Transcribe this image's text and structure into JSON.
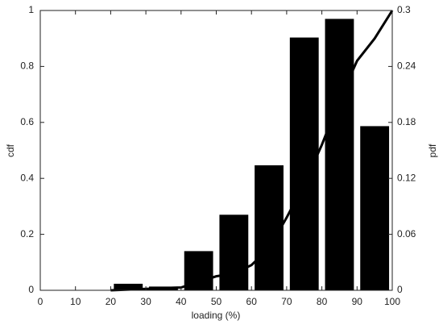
{
  "chart_data": {
    "type": "combo",
    "xlabel": "loading (%)",
    "ylabel": "cdf",
    "y2label": "pdf",
    "xlim": [
      0,
      100
    ],
    "xticks": [
      0,
      10,
      20,
      30,
      40,
      50,
      60,
      70,
      80,
      90,
      100
    ],
    "ylim": [
      0,
      1
    ],
    "yticks": [
      0,
      0.2,
      0.4,
      0.6,
      0.8,
      1
    ],
    "y2lim": [
      0,
      0.3
    ],
    "y2ticks": [
      0,
      0.06,
      0.12,
      0.18,
      0.24,
      0.3
    ],
    "grid": false,
    "series": [
      {
        "type": "bar",
        "axis": "y2",
        "color": "#000000",
        "x": [
          25,
          35,
          45,
          55,
          65,
          75,
          85,
          95
        ],
        "values": [
          0.007,
          0.004,
          0.042,
          0.081,
          0.134,
          0.271,
          0.291,
          0.176
        ]
      },
      {
        "type": "line",
        "axis": "y",
        "color": "#000000",
        "x": [
          20,
          30,
          40,
          45,
          50,
          55,
          60,
          65,
          70,
          75,
          80,
          85,
          90,
          95,
          100
        ],
        "values": [
          0,
          0.005,
          0.01,
          0.03,
          0.05,
          0.06,
          0.09,
          0.15,
          0.26,
          0.38,
          0.52,
          0.68,
          0.82,
          0.9,
          1.0
        ]
      }
    ]
  }
}
